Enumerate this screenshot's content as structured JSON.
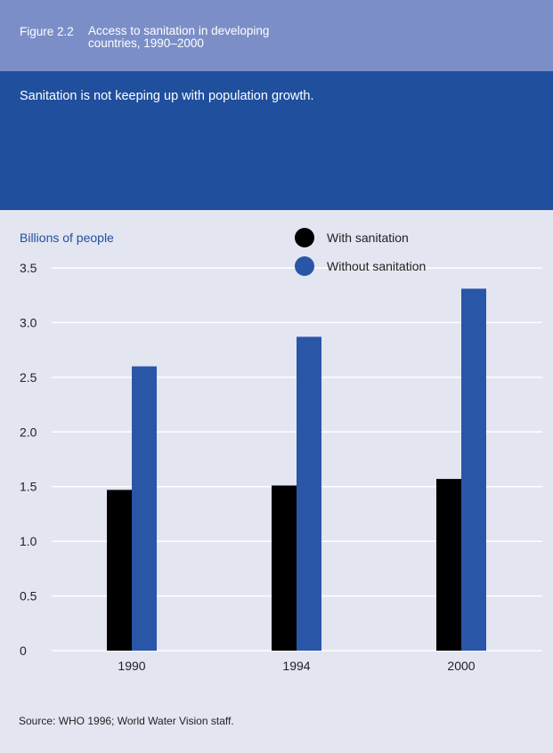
{
  "header": {
    "figure_label": "Figure 2.2",
    "title_line1": "Access to sanitation in developing",
    "title_line2": "countries, 1990–2000"
  },
  "banner": {
    "subtitle": "Sanitation is not keeping up with population growth."
  },
  "colors": {
    "header_bg": "#7b8ec8",
    "banner_bg": "#1f4f9d",
    "chart_bg": "#e3e5f1",
    "with_sanitation": "#000000",
    "without_sanitation": "#2a56a8",
    "ylabel_color": "#1f4f9d"
  },
  "chart_data": {
    "type": "bar",
    "ylabel": "Billions of people",
    "xlabel": "",
    "categories": [
      "1990",
      "1994",
      "2000"
    ],
    "series": [
      {
        "name": "With sanitation",
        "values": [
          1.47,
          1.51,
          1.57
        ]
      },
      {
        "name": "Without sanitation",
        "values": [
          2.6,
          2.87,
          3.31
        ]
      }
    ],
    "ylim": [
      0,
      3.5
    ],
    "yticks": [
      "0",
      "0.5",
      "1.0",
      "1.5",
      "2.0",
      "2.5",
      "3.0",
      "3.5"
    ],
    "grid": true,
    "legend_position": "top-right"
  },
  "footer": {
    "source": "Source: WHO 1996; World Water Vision staff."
  }
}
